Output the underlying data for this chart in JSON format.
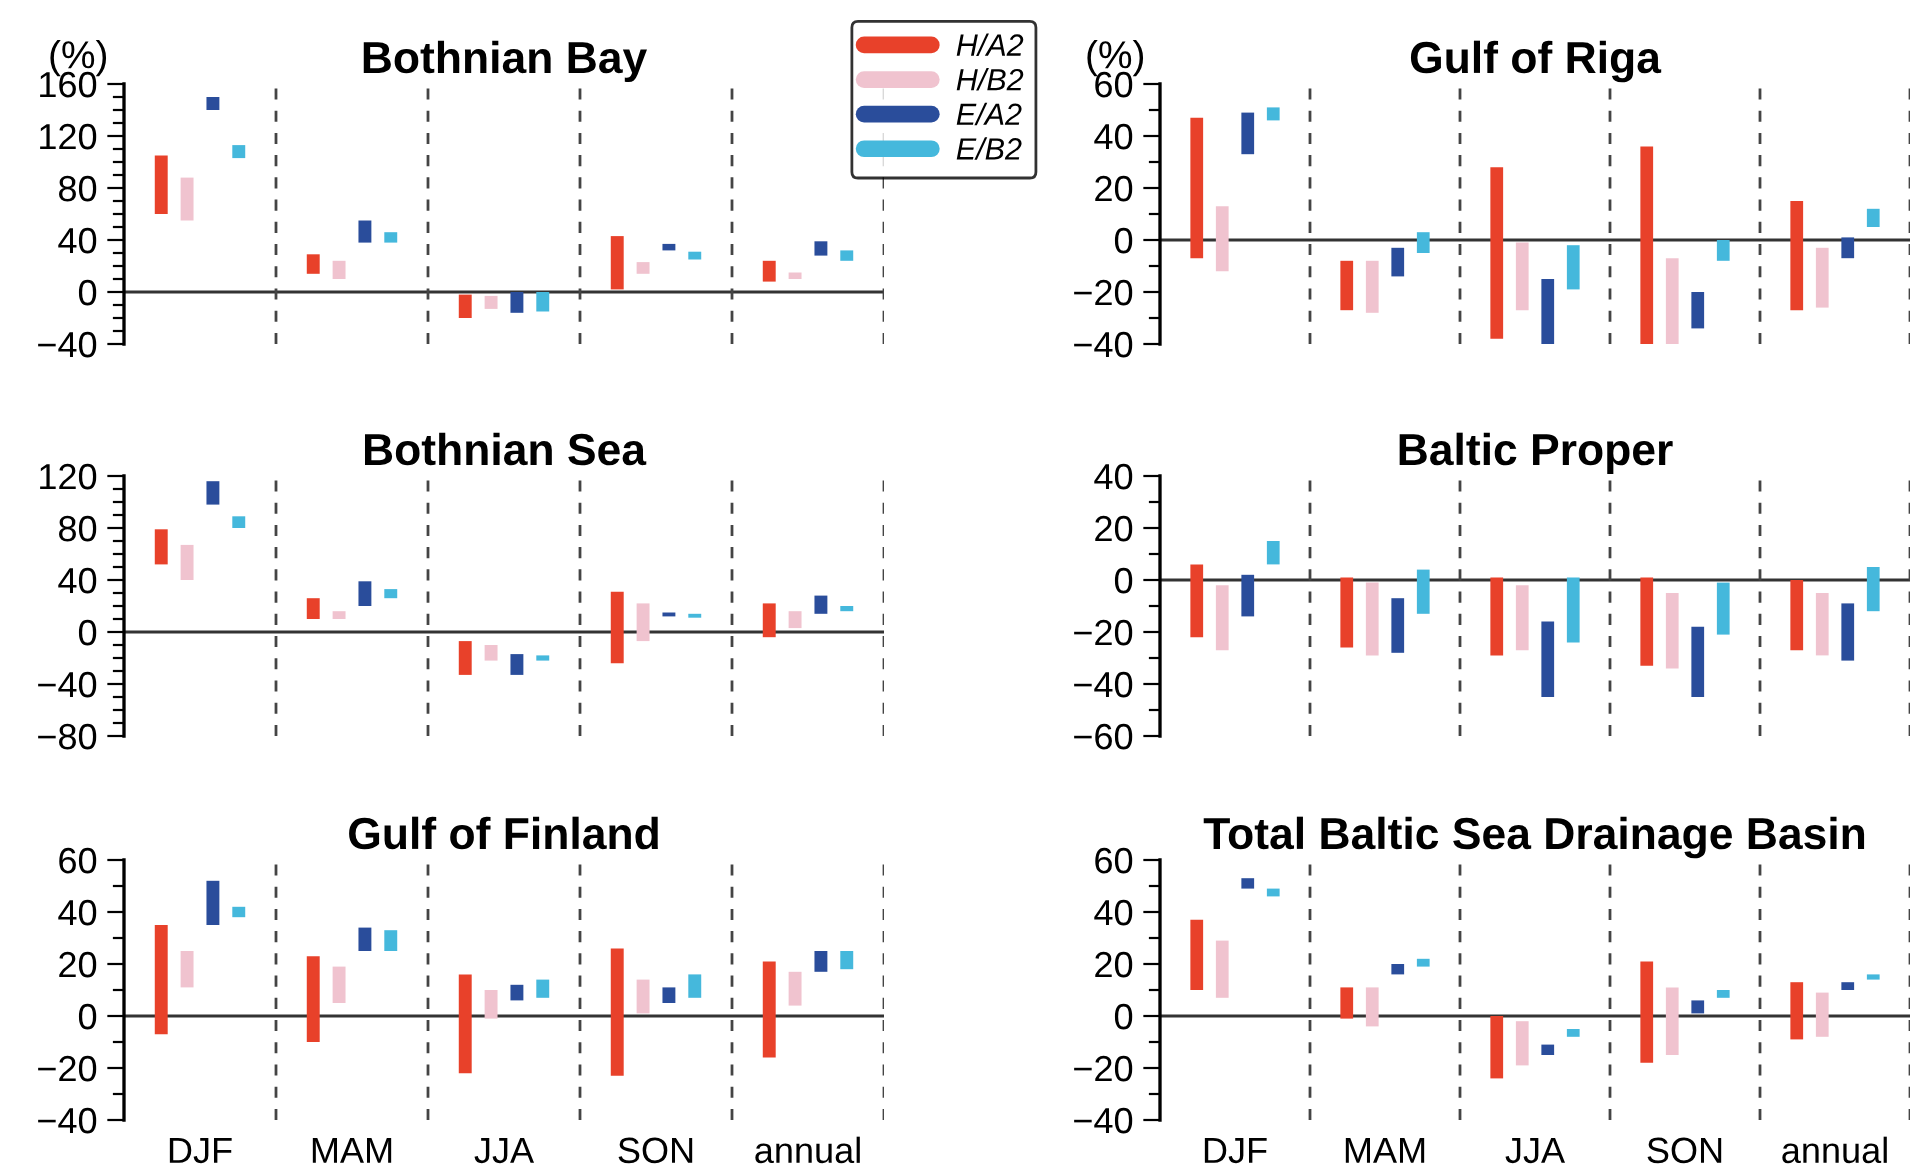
{
  "chart_data": [
    {
      "type": "bar",
      "title": "Bothnian Bay",
      "ylabel": "(%)",
      "categories": [
        null,
        null,
        null,
        null,
        null
      ],
      "grid": "x",
      "legend": "top right",
      "ylim": [
        -40,
        160
      ],
      "yticks": [
        -40,
        {
          "value": -30,
          "label": null
        },
        {
          "value": -20,
          "label": null
        },
        {
          "value": -10,
          "label": null
        },
        0,
        {
          "value": 10,
          "label": null
        },
        {
          "value": 20,
          "label": null
        },
        {
          "value": 30,
          "label": null
        },
        40,
        {
          "value": 50,
          "label": null
        },
        {
          "value": 60,
          "label": null
        },
        {
          "value": 70,
          "label": null
        },
        80,
        {
          "value": 90,
          "label": null
        },
        {
          "value": 100,
          "label": null
        },
        {
          "value": 110,
          "label": null
        },
        120,
        {
          "value": 130,
          "label": null
        },
        {
          "value": 140,
          "label": null
        },
        {
          "value": 150,
          "label": null
        },
        160
      ],
      "ref_lines": [
        {
          "axis": "y",
          "value": 0
        }
      ],
      "series": [
        {
          "name": "H/A2",
          "color": "#e8412a",
          "base": [
            60,
            14,
            -20,
            2,
            8
          ],
          "values": [
            45,
            15,
            18,
            41,
            16
          ]
        },
        {
          "name": "H/B2",
          "color": "#f0c3cf",
          "base": [
            55,
            10,
            -13,
            14,
            10
          ],
          "values": [
            33,
            14,
            10,
            9,
            5
          ]
        },
        {
          "name": "E/A2",
          "color": "#2a4d9b",
          "base": [
            140,
            38,
            -16,
            32,
            28
          ],
          "values": [
            10,
            17,
            16,
            5,
            11
          ]
        },
        {
          "name": "E/B2",
          "color": "#45b8dc",
          "base": [
            103,
            38,
            -15,
            25,
            24
          ],
          "values": [
            10,
            8,
            15,
            6,
            8
          ]
        }
      ]
    },
    {
      "type": "bar",
      "title": "Gulf of Riga",
      "ylabel": "(%)",
      "categories": [
        null,
        null,
        null,
        null,
        null
      ],
      "grid": "x",
      "ylim": [
        -40,
        60
      ],
      "yticks": [
        -40,
        {
          "value": -30,
          "label": null
        },
        -20,
        {
          "value": -10,
          "label": null
        },
        0,
        {
          "value": 10,
          "label": null
        },
        20,
        {
          "value": 30,
          "label": null
        },
        40,
        {
          "value": 50,
          "label": null
        },
        60
      ],
      "ref_lines": [
        {
          "axis": "y",
          "value": 0
        }
      ],
      "series": [
        {
          "color": "#e8412a",
          "base": [
            -7,
            -27,
            -38,
            -42,
            -27
          ],
          "values": [
            54,
            19,
            66,
            78,
            42
          ]
        },
        {
          "color": "#f0c3cf",
          "base": [
            -12,
            -28,
            -27,
            -40,
            -26
          ],
          "values": [
            25,
            20,
            26,
            33,
            23
          ]
        },
        {
          "color": "#2a4d9b",
          "base": [
            33,
            -14,
            -40,
            -34,
            -7
          ],
          "values": [
            16,
            11,
            25,
            14,
            8
          ]
        },
        {
          "color": "#45b8dc",
          "base": [
            46,
            -5,
            -19,
            -8,
            5
          ],
          "values": [
            5,
            8,
            17,
            8,
            7
          ]
        }
      ]
    },
    {
      "type": "bar",
      "title": "Bothnian Sea",
      "categories": [
        null,
        null,
        null,
        null,
        null
      ],
      "grid": "x",
      "ylim": [
        -80,
        120
      ],
      "yticks": [
        -80,
        {
          "value": -70,
          "label": null
        },
        {
          "value": -60,
          "label": null
        },
        {
          "value": -50,
          "label": null
        },
        -40,
        {
          "value": -30,
          "label": null
        },
        {
          "value": -20,
          "label": null
        },
        {
          "value": -10,
          "label": null
        },
        0,
        {
          "value": 10,
          "label": null
        },
        {
          "value": 20,
          "label": null
        },
        {
          "value": 30,
          "label": null
        },
        40,
        {
          "value": 50,
          "label": null
        },
        {
          "value": 60,
          "label": null
        },
        {
          "value": 70,
          "label": null
        },
        80,
        {
          "value": 90,
          "label": null
        },
        {
          "value": 100,
          "label": null
        },
        {
          "value": 110,
          "label": null
        },
        120
      ],
      "ref_lines": [
        {
          "axis": "y",
          "value": 0
        }
      ],
      "series": [
        {
          "color": "#e8412a",
          "base": [
            52,
            10,
            -33,
            -24,
            -4
          ],
          "values": [
            27,
            16,
            26,
            55,
            26
          ]
        },
        {
          "color": "#f0c3cf",
          "base": [
            40,
            10,
            -22,
            -7,
            3
          ],
          "values": [
            27,
            6,
            12,
            29,
            13
          ]
        },
        {
          "color": "#2a4d9b",
          "base": [
            98,
            20,
            -33,
            12,
            14
          ],
          "values": [
            18,
            19,
            16,
            3,
            14
          ]
        },
        {
          "color": "#45b8dc",
          "base": [
            80,
            26,
            -22,
            11,
            16
          ],
          "values": [
            9,
            7,
            4,
            3,
            4
          ]
        }
      ]
    },
    {
      "type": "bar",
      "title": "Baltic Proper",
      "categories": [
        null,
        null,
        null,
        null,
        null
      ],
      "grid": "x",
      "ylim": [
        -60,
        40
      ],
      "yticks": [
        -60,
        {
          "value": -50,
          "label": null
        },
        -40,
        {
          "value": -30,
          "label": null
        },
        -20,
        {
          "value": -10,
          "label": null
        },
        0,
        {
          "value": 10,
          "label": null
        },
        20,
        {
          "value": 30,
          "label": null
        },
        40
      ],
      "ref_lines": [
        {
          "axis": "y",
          "value": 0
        }
      ],
      "series": [
        {
          "color": "#e8412a",
          "base": [
            -22,
            -26,
            -29,
            -33,
            -27
          ],
          "values": [
            28,
            27,
            30,
            34,
            27
          ]
        },
        {
          "color": "#f0c3cf",
          "base": [
            -27,
            -29,
            -27,
            -34,
            -29
          ],
          "values": [
            25,
            28,
            25,
            29,
            24
          ]
        },
        {
          "color": "#2a4d9b",
          "base": [
            -14,
            -28,
            -45,
            -45,
            -31
          ],
          "values": [
            16,
            21,
            29,
            27,
            22
          ]
        },
        {
          "color": "#45b8dc",
          "base": [
            6,
            -13,
            -24,
            -21,
            -12
          ],
          "values": [
            9,
            17,
            25,
            20,
            17
          ]
        }
      ]
    },
    {
      "type": "bar",
      "title": "Gulf of Finland",
      "categories": [
        "DJF",
        "MAM",
        "JJA",
        "SON",
        "annual"
      ],
      "grid": "x",
      "ylim": [
        -40,
        60
      ],
      "yticks": [
        -40,
        {
          "value": -30,
          "label": null
        },
        -20,
        {
          "value": -10,
          "label": null
        },
        0,
        {
          "value": 10,
          "label": null
        },
        20,
        {
          "value": 30,
          "label": null
        },
        40,
        {
          "value": 50,
          "label": null
        },
        60
      ],
      "ref_lines": [
        {
          "axis": "y",
          "value": 0
        }
      ],
      "series": [
        {
          "color": "#e8412a",
          "base": [
            -7,
            -10,
            -22,
            -23,
            -16
          ],
          "values": [
            42,
            33,
            38,
            49,
            37
          ]
        },
        {
          "color": "#f0c3cf",
          "base": [
            11,
            5,
            -1,
            1,
            4
          ],
          "values": [
            14,
            14,
            11,
            13,
            13
          ]
        },
        {
          "color": "#2a4d9b",
          "base": [
            35,
            25,
            6,
            5,
            17
          ],
          "values": [
            17,
            9,
            6,
            6,
            8
          ]
        },
        {
          "color": "#45b8dc",
          "base": [
            38,
            25,
            7,
            7,
            18
          ],
          "values": [
            4,
            8,
            7,
            9,
            7
          ]
        }
      ]
    },
    {
      "type": "bar",
      "title": "Total Baltic Sea Drainage Basin",
      "categories": [
        "DJF",
        "MAM",
        "JJA",
        "SON",
        "annual"
      ],
      "grid": "x",
      "ylim": [
        -40,
        60
      ],
      "yticks": [
        -40,
        {
          "value": -30,
          "label": null
        },
        -20,
        {
          "value": -10,
          "label": null
        },
        0,
        {
          "value": 10,
          "label": null
        },
        20,
        {
          "value": 30,
          "label": null
        },
        40,
        {
          "value": 50,
          "label": null
        },
        60
      ],
      "ref_lines": [
        {
          "axis": "y",
          "value": 0
        }
      ],
      "series": [
        {
          "color": "#e8412a",
          "base": [
            10,
            -1,
            -24,
            -18,
            -9
          ],
          "values": [
            27,
            12,
            24,
            39,
            22
          ]
        },
        {
          "color": "#f0c3cf",
          "base": [
            7,
            -4,
            -19,
            -15,
            -8
          ],
          "values": [
            22,
            15,
            17,
            26,
            17
          ]
        },
        {
          "color": "#2a4d9b",
          "base": [
            49,
            16,
            -15,
            1,
            10
          ],
          "values": [
            4,
            4,
            4,
            5,
            3
          ]
        },
        {
          "color": "#45b8dc",
          "base": [
            46,
            19,
            -8,
            7,
            14
          ],
          "values": [
            3,
            3,
            3,
            3,
            2
          ]
        }
      ]
    }
  ]
}
